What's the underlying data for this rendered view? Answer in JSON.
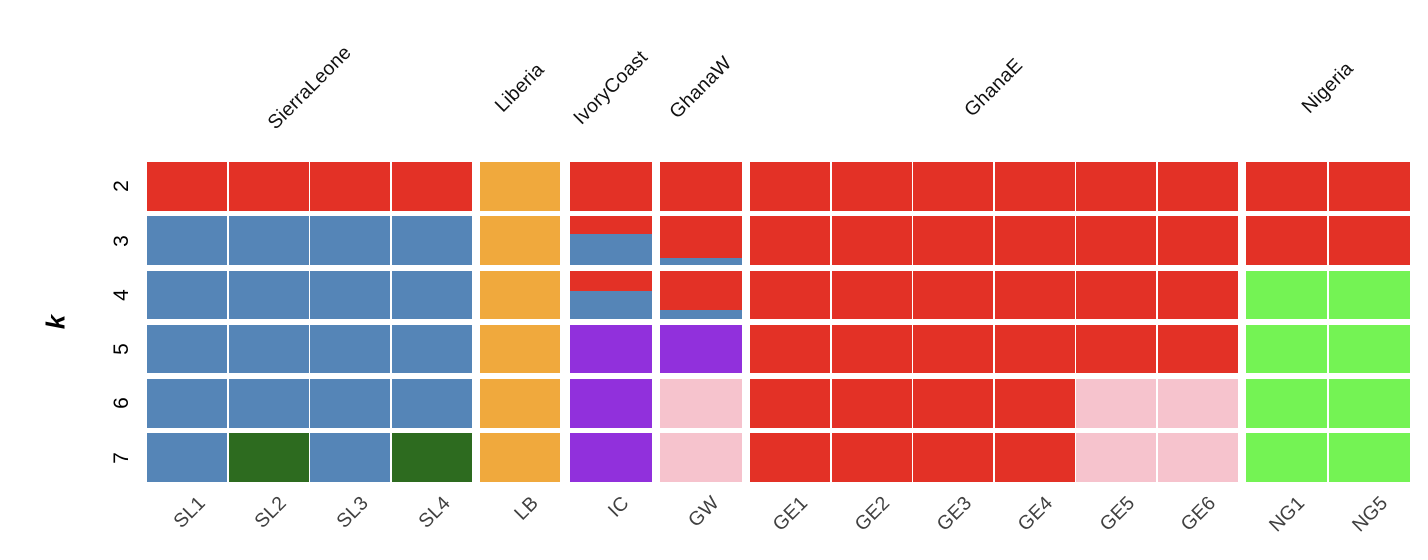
{
  "figure": {
    "background": "#ffffff"
  },
  "palette": {
    "red": "#e33126",
    "blue": "#5585b7",
    "orange": "#f0a93d",
    "purple": "#9130dc",
    "pink": "#f6c3cd",
    "darkgreen": "#2d6b1f",
    "green": "#74f354"
  },
  "chart_data": {
    "type": "heatmap",
    "variant": "admixture-cluster-membership-grid",
    "title": "",
    "xlabel": "",
    "ylabel": "k",
    "legend": "none",
    "grid": "off",
    "k_values": [
      "2",
      "3",
      "4",
      "5",
      "6",
      "7"
    ],
    "groups": [
      {
        "label": "SierraLeone",
        "samples": [
          "SL1",
          "SL2",
          "SL3",
          "SL4"
        ]
      },
      {
        "label": "Liberia",
        "samples": [
          "LB"
        ]
      },
      {
        "label": "IvoryCoast",
        "samples": [
          "IC"
        ]
      },
      {
        "label": "GhanaW",
        "samples": [
          "GW"
        ]
      },
      {
        "label": "GhanaE",
        "samples": [
          "GE1",
          "GE2",
          "GE3",
          "GE4",
          "GE5",
          "GE6"
        ]
      },
      {
        "label": "Nigeria",
        "samples": [
          "NG1",
          "NG5"
        ]
      }
    ],
    "samples": [
      "SL1",
      "SL2",
      "SL3",
      "SL4",
      "LB",
      "IC",
      "GW",
      "GE1",
      "GE2",
      "GE3",
      "GE4",
      "GE5",
      "GE6",
      "NG1",
      "NG5"
    ],
    "rows": [
      {
        "k": "2",
        "cells": [
          [
            [
              "red",
              1
            ]
          ],
          [
            [
              "red",
              1
            ]
          ],
          [
            [
              "red",
              1
            ]
          ],
          [
            [
              "red",
              1
            ]
          ],
          [
            [
              "orange",
              1
            ]
          ],
          [
            [
              "red",
              1
            ]
          ],
          [
            [
              "red",
              1
            ]
          ],
          [
            [
              "red",
              1
            ]
          ],
          [
            [
              "red",
              1
            ]
          ],
          [
            [
              "red",
              1
            ]
          ],
          [
            [
              "red",
              1
            ]
          ],
          [
            [
              "red",
              1
            ]
          ],
          [
            [
              "red",
              1
            ]
          ],
          [
            [
              "red",
              1
            ]
          ],
          [
            [
              "red",
              1
            ]
          ]
        ]
      },
      {
        "k": "3",
        "cells": [
          [
            [
              "blue",
              1
            ]
          ],
          [
            [
              "blue",
              1
            ]
          ],
          [
            [
              "blue",
              1
            ]
          ],
          [
            [
              "blue",
              1
            ]
          ],
          [
            [
              "orange",
              1
            ]
          ],
          [
            [
              "red",
              0.36
            ],
            [
              "blue",
              0.64
            ]
          ],
          [
            [
              "red",
              0.85
            ],
            [
              "blue",
              0.15
            ]
          ],
          [
            [
              "red",
              1
            ]
          ],
          [
            [
              "red",
              1
            ]
          ],
          [
            [
              "red",
              1
            ]
          ],
          [
            [
              "red",
              1
            ]
          ],
          [
            [
              "red",
              1
            ]
          ],
          [
            [
              "red",
              1
            ]
          ],
          [
            [
              "red",
              1
            ]
          ],
          [
            [
              "red",
              1
            ]
          ]
        ]
      },
      {
        "k": "4",
        "cells": [
          [
            [
              "blue",
              1
            ]
          ],
          [
            [
              "blue",
              1
            ]
          ],
          [
            [
              "blue",
              1
            ]
          ],
          [
            [
              "blue",
              1
            ]
          ],
          [
            [
              "orange",
              1
            ]
          ],
          [
            [
              "red",
              0.42
            ],
            [
              "blue",
              0.58
            ]
          ],
          [
            [
              "red",
              0.82
            ],
            [
              "blue",
              0.18
            ]
          ],
          [
            [
              "red",
              1
            ]
          ],
          [
            [
              "red",
              1
            ]
          ],
          [
            [
              "red",
              1
            ]
          ],
          [
            [
              "red",
              1
            ]
          ],
          [
            [
              "red",
              1
            ]
          ],
          [
            [
              "red",
              1
            ]
          ],
          [
            [
              "green",
              1
            ]
          ],
          [
            [
              "green",
              1
            ]
          ]
        ]
      },
      {
        "k": "5",
        "cells": [
          [
            [
              "blue",
              1
            ]
          ],
          [
            [
              "blue",
              1
            ]
          ],
          [
            [
              "blue",
              1
            ]
          ],
          [
            [
              "blue",
              1
            ]
          ],
          [
            [
              "orange",
              1
            ]
          ],
          [
            [
              "purple",
              1
            ]
          ],
          [
            [
              "purple",
              1
            ]
          ],
          [
            [
              "red",
              1
            ]
          ],
          [
            [
              "red",
              1
            ]
          ],
          [
            [
              "red",
              1
            ]
          ],
          [
            [
              "red",
              1
            ]
          ],
          [
            [
              "red",
              1
            ]
          ],
          [
            [
              "red",
              1
            ]
          ],
          [
            [
              "green",
              1
            ]
          ],
          [
            [
              "green",
              1
            ]
          ]
        ]
      },
      {
        "k": "6",
        "cells": [
          [
            [
              "blue",
              1
            ]
          ],
          [
            [
              "blue",
              1
            ]
          ],
          [
            [
              "blue",
              1
            ]
          ],
          [
            [
              "blue",
              1
            ]
          ],
          [
            [
              "orange",
              1
            ]
          ],
          [
            [
              "purple",
              1
            ]
          ],
          [
            [
              "pink",
              1
            ]
          ],
          [
            [
              "red",
              1
            ]
          ],
          [
            [
              "red",
              1
            ]
          ],
          [
            [
              "red",
              1
            ]
          ],
          [
            [
              "red",
              1
            ]
          ],
          [
            [
              "pink",
              1
            ]
          ],
          [
            [
              "pink",
              1
            ]
          ],
          [
            [
              "green",
              1
            ]
          ],
          [
            [
              "green",
              1
            ]
          ]
        ]
      },
      {
        "k": "7",
        "cells": [
          [
            [
              "blue",
              1
            ]
          ],
          [
            [
              "darkgreen",
              1
            ]
          ],
          [
            [
              "blue",
              1
            ]
          ],
          [
            [
              "darkgreen",
              1
            ]
          ],
          [
            [
              "orange",
              1
            ]
          ],
          [
            [
              "purple",
              1
            ]
          ],
          [
            [
              "pink",
              1
            ]
          ],
          [
            [
              "red",
              1
            ]
          ],
          [
            [
              "red",
              1
            ]
          ],
          [
            [
              "red",
              1
            ]
          ],
          [
            [
              "red",
              1
            ]
          ],
          [
            [
              "pink",
              1
            ]
          ],
          [
            [
              "pink",
              1
            ]
          ],
          [
            [
              "green",
              1
            ]
          ],
          [
            [
              "green",
              1
            ]
          ]
        ]
      }
    ]
  }
}
